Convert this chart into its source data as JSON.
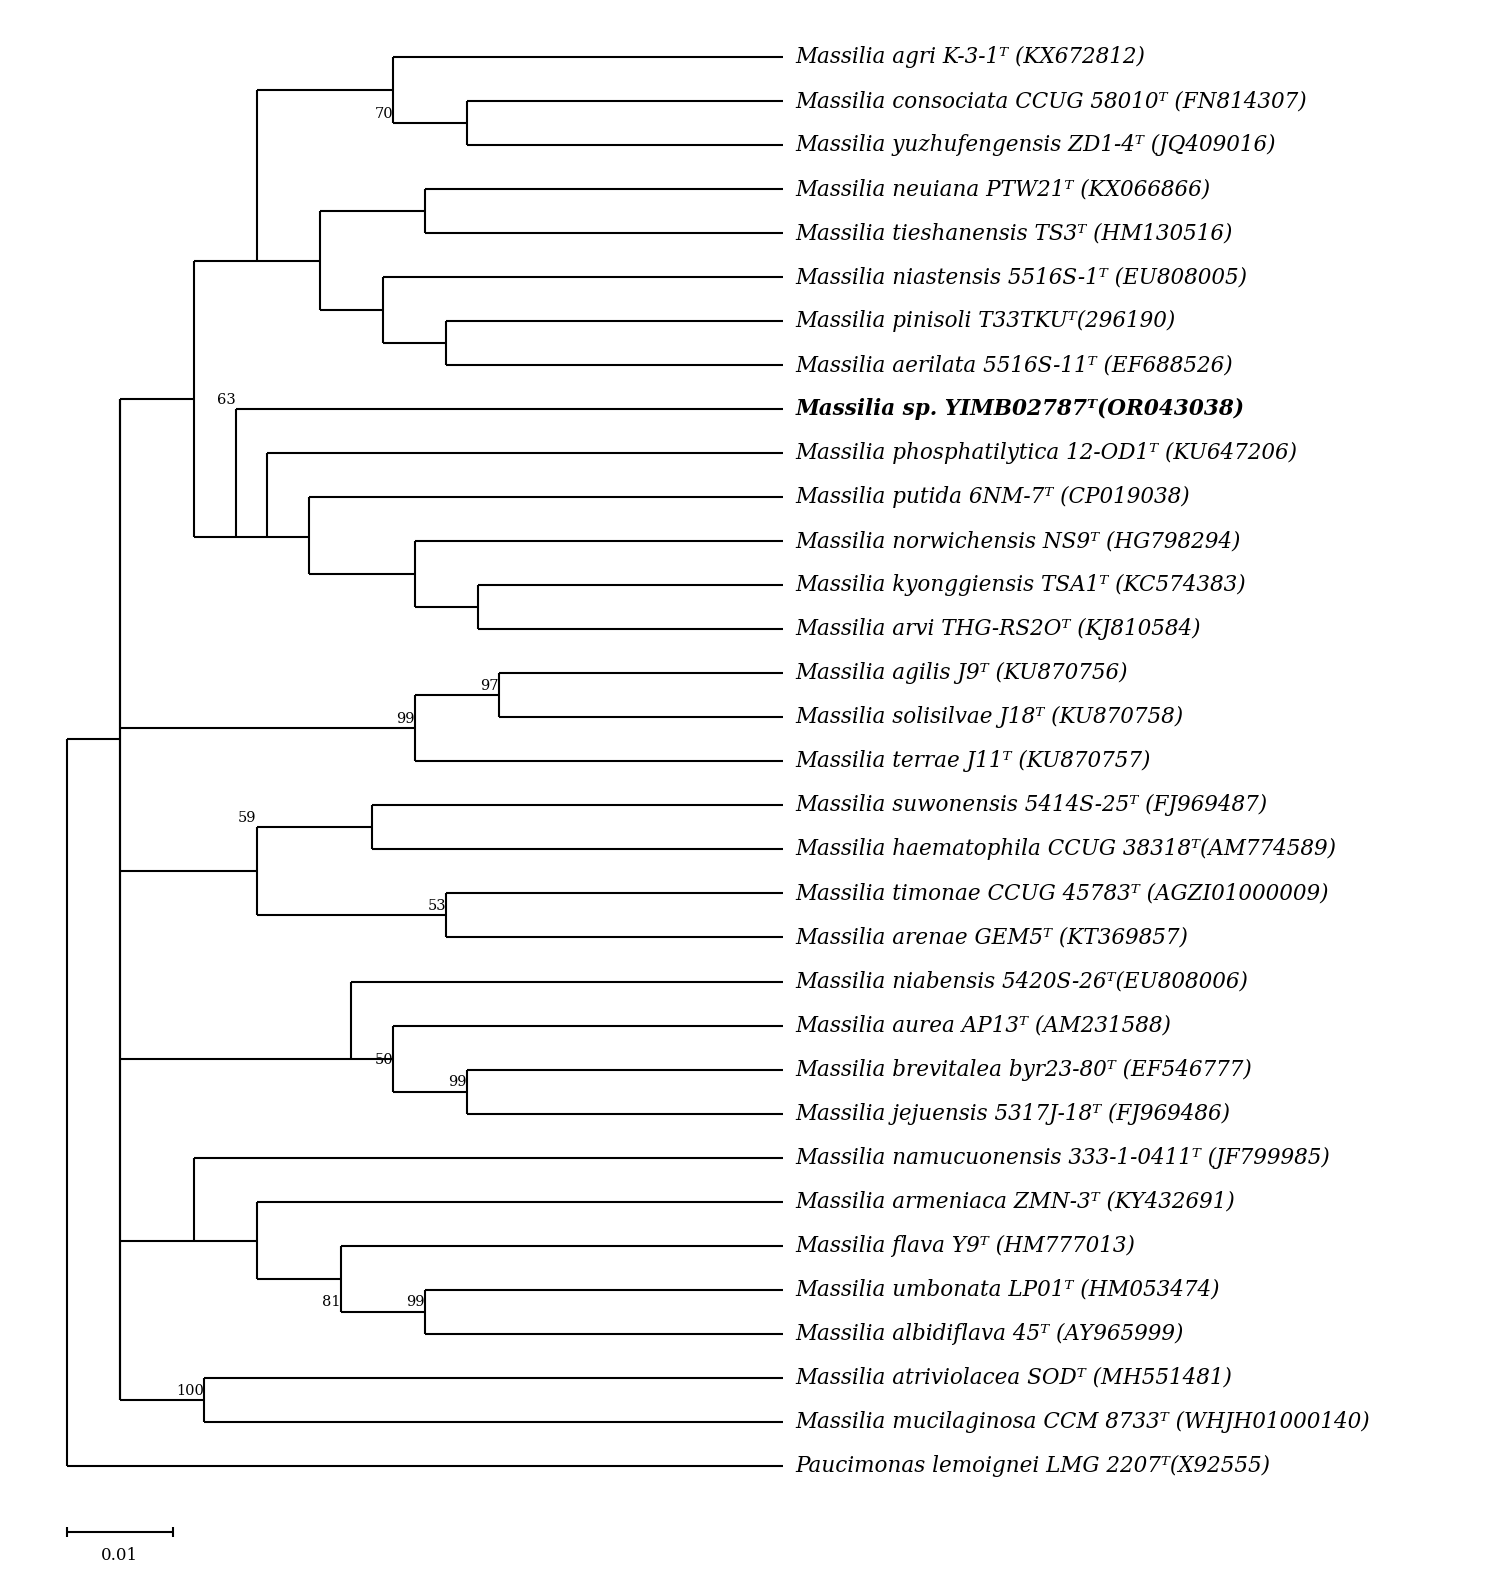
{
  "taxa": [
    {
      "name": "Massilia agri K-3-1ᵀ (KX672812)",
      "y": 33,
      "bold": false
    },
    {
      "name": "Massilia consociata CCUG 58010ᵀ (FN814307)",
      "y": 32,
      "bold": false
    },
    {
      "name": "Massilia yuzhufengensis ZD1-4ᵀ (JQ409016)",
      "y": 31,
      "bold": false
    },
    {
      "name": "Massilia neuiana PTW21ᵀ (KX066866)",
      "y": 30,
      "bold": false
    },
    {
      "name": "Massilia tieshanensis TS3ᵀ (HM130516)",
      "y": 29,
      "bold": false
    },
    {
      "name": "Massilia niastensis 5516S-1ᵀ (EU808005)",
      "y": 28,
      "bold": false
    },
    {
      "name": "Massilia pinisoli T33TKUᵀ(296190)",
      "y": 27,
      "bold": false
    },
    {
      "name": "Massilia aerilata 5516S-11ᵀ (EF688526)",
      "y": 26,
      "bold": false
    },
    {
      "name": "Massilia sp. YIMB02787ᵀ(OR043038)",
      "y": 25,
      "bold": true
    },
    {
      "name": "Massilia phosphatilytica 12-OD1ᵀ (KU647206)",
      "y": 24,
      "bold": false
    },
    {
      "name": "Massilia putida 6NM-7ᵀ (CP019038)",
      "y": 23,
      "bold": false
    },
    {
      "name": "Massilia norwichensis NS9ᵀ (HG798294)",
      "y": 22,
      "bold": false
    },
    {
      "name": "Massilia kyonggiensis TSA1ᵀ (KC574383)",
      "y": 21,
      "bold": false
    },
    {
      "name": "Massilia arvi THG-RS2Oᵀ (KJ810584)",
      "y": 20,
      "bold": false
    },
    {
      "name": "Massilia agilis J9ᵀ (KU870756)",
      "y": 19,
      "bold": false
    },
    {
      "name": "Massilia solisilvae J18ᵀ (KU870758)",
      "y": 18,
      "bold": false
    },
    {
      "name": "Massilia terrae J11ᵀ (KU870757)",
      "y": 17,
      "bold": false
    },
    {
      "name": "Massilia suwonensis 5414S-25ᵀ (FJ969487)",
      "y": 16,
      "bold": false
    },
    {
      "name": "Massilia haematophila CCUG 38318ᵀ(AM774589)",
      "y": 15,
      "bold": false
    },
    {
      "name": "Massilia timonae CCUG 45783ᵀ (AGZI01000009)",
      "y": 14,
      "bold": false
    },
    {
      "name": "Massilia arenae GEM5ᵀ (KT369857)",
      "y": 13,
      "bold": false
    },
    {
      "name": "Massilia niabensis 5420S-26ᵀ(EU808006)",
      "y": 12,
      "bold": false
    },
    {
      "name": "Massilia aurea AP13ᵀ (AM231588)",
      "y": 11,
      "bold": false
    },
    {
      "name": "Massilia brevitalea byr23-80ᵀ (EF546777)",
      "y": 10,
      "bold": false
    },
    {
      "name": "Massilia jejuensis 5317J-18ᵀ (FJ969486)",
      "y": 9,
      "bold": false
    },
    {
      "name": "Massilia namucuonensis 333-1-0411ᵀ (JF799985)",
      "y": 8,
      "bold": false
    },
    {
      "name": "Massilia armeniaca ZMN-3ᵀ (KY432691)",
      "y": 7,
      "bold": false
    },
    {
      "name": "Massilia flava Y9ᵀ (HM777013)",
      "y": 6,
      "bold": false
    },
    {
      "name": "Massilia umbonata LP01ᵀ (HM053474)",
      "y": 5,
      "bold": false
    },
    {
      "name": "Massilia albidiflava 45ᵀ (AY965999)",
      "y": 4,
      "bold": false
    },
    {
      "name": "Massilia atriviolacea SODᵀ (MH551481)",
      "y": 3,
      "bold": false
    },
    {
      "name": "Massilia mucilaginosa CCM 8733ᵀ (WHJH01000140)",
      "y": 2,
      "bold": false
    },
    {
      "name": "Paucimonas lemoignei LMG 2207ᵀ(X92555)",
      "y": 1,
      "bold": false
    }
  ],
  "line_color": "#000000",
  "background_color": "#ffffff",
  "fontsize": 15.5,
  "scale_bar_label": "0.01"
}
